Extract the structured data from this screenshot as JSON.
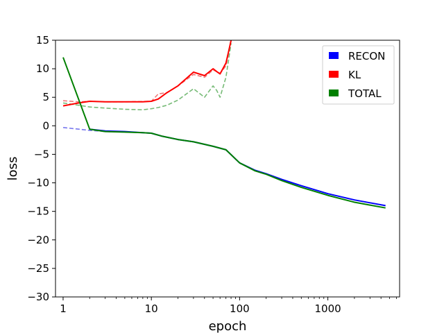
{
  "chart_data": {
    "type": "line",
    "xscale": "log",
    "xlim": [
      0.82,
      6500
    ],
    "ylim": [
      -30,
      15
    ],
    "xlabel": "epoch",
    "ylabel": "loss",
    "xticks": [
      {
        "value": 1,
        "label": "1"
      },
      {
        "value": 10,
        "label": "10"
      },
      {
        "value": 100,
        "label": "100"
      },
      {
        "value": 1000,
        "label": "1000"
      }
    ],
    "yticks": [
      {
        "value": 15,
        "label": "15"
      },
      {
        "value": 10,
        "label": "10"
      },
      {
        "value": 5,
        "label": "5"
      },
      {
        "value": 0,
        "label": "0"
      },
      {
        "value": -5,
        "label": "−5"
      },
      {
        "value": -10,
        "label": "−10"
      },
      {
        "value": -15,
        "label": "−15"
      },
      {
        "value": -20,
        "label": "−20"
      },
      {
        "value": -25,
        "label": "−25"
      },
      {
        "value": -30,
        "label": "−30"
      }
    ],
    "legend_position": "top-right",
    "legend": [
      {
        "label": "RECON",
        "color": "#0000ff"
      },
      {
        "label": "KL",
        "color": "#ff0000"
      },
      {
        "label": "TOTAL",
        "color": "#008000"
      }
    ],
    "series": [
      {
        "name": "RECON",
        "style": "dashed",
        "color": "#7777ee",
        "x": [
          1,
          2,
          3,
          5,
          8,
          10,
          13,
          20,
          30,
          50,
          70,
          100,
          150,
          200,
          300,
          500,
          1000,
          2000,
          3000,
          4500
        ],
        "y": [
          -0.3,
          -0.8,
          -1.0,
          -1.1,
          -1.2,
          -1.3,
          -1.8,
          -2.4,
          -2.8,
          -3.6,
          -4.2,
          -6.5,
          -7.8,
          -8.4,
          -9.4,
          -10.5,
          -11.9,
          -13.0,
          -13.5,
          -14.0
        ]
      },
      {
        "name": "KL",
        "style": "dashed",
        "color": "#ee7777",
        "x": [
          1,
          1.5,
          2,
          3,
          5,
          10,
          12,
          15,
          20,
          30,
          40,
          50,
          55,
          60,
          70,
          80
        ],
        "y": [
          4.4,
          4.2,
          4.3,
          4.2,
          4.2,
          4.3,
          5.6,
          5.8,
          7.0,
          9.0,
          8.5,
          9.8,
          9.5,
          9.2,
          10.5,
          15
        ]
      },
      {
        "name": "TOTAL",
        "style": "dashed",
        "color": "#77bb77",
        "x": [
          1,
          1.5,
          2,
          3,
          5,
          8,
          10,
          12,
          15,
          20,
          30,
          40,
          50,
          55,
          60,
          70,
          80
        ],
        "y": [
          4.0,
          3.6,
          3.3,
          3.1,
          2.9,
          2.8,
          3.0,
          3.2,
          3.6,
          4.5,
          6.5,
          5.0,
          7.0,
          6.2,
          5.0,
          8.5,
          14.5
        ]
      },
      {
        "name": "KL",
        "style": "solid",
        "color": "#ff0000",
        "x": [
          1,
          1.5,
          2,
          3,
          5,
          8,
          10,
          12,
          15,
          20,
          30,
          40,
          50,
          55,
          60,
          70,
          75,
          80
        ],
        "y": [
          3.5,
          4.0,
          4.3,
          4.2,
          4.2,
          4.2,
          4.3,
          4.7,
          5.8,
          7.0,
          9.4,
          8.8,
          10.0,
          9.5,
          9.1,
          11.0,
          13.0,
          15.0
        ]
      },
      {
        "name": "RECON",
        "style": "solid",
        "color": "#0000ff",
        "x": [
          2,
          3,
          5,
          8,
          10,
          13,
          20,
          30,
          50,
          70,
          100,
          150,
          200,
          300,
          500,
          1000,
          2000,
          3000,
          4500
        ],
        "y": [
          -0.6,
          -0.9,
          -1.0,
          -1.2,
          -1.3,
          -1.8,
          -2.4,
          -2.8,
          -3.6,
          -4.2,
          -6.5,
          -7.8,
          -8.4,
          -9.4,
          -10.5,
          -11.9,
          -13.0,
          -13.5,
          -14.0
        ]
      },
      {
        "name": "TOTAL",
        "style": "solid",
        "color": "#008000",
        "x": [
          1,
          2,
          3,
          5,
          8,
          10,
          13,
          20,
          30,
          50,
          70,
          100,
          150,
          200,
          300,
          500,
          1000,
          2000,
          3000,
          4500
        ],
        "y": [
          12.0,
          -0.6,
          -1.0,
          -1.1,
          -1.2,
          -1.3,
          -1.8,
          -2.4,
          -2.8,
          -3.6,
          -4.2,
          -6.5,
          -7.9,
          -8.5,
          -9.6,
          -10.8,
          -12.2,
          -13.4,
          -13.9,
          -14.4
        ]
      }
    ]
  }
}
